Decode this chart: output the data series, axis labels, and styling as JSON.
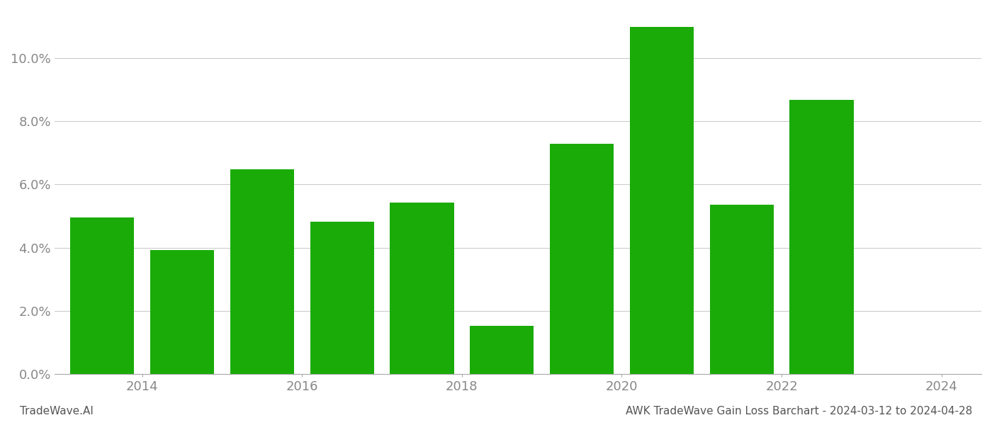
{
  "years": [
    2014,
    2015,
    2016,
    2017,
    2018,
    2019,
    2020,
    2021,
    2022,
    2023
  ],
  "values": [
    0.0495,
    0.0393,
    0.0648,
    0.0482,
    0.0542,
    0.0152,
    0.0728,
    0.1098,
    0.0535,
    0.0868
  ],
  "bar_color": "#1aab08",
  "background_color": "#ffffff",
  "grid_color": "#cccccc",
  "title": "AWK TradeWave Gain Loss Barchart - 2024-03-12 to 2024-04-28",
  "footer_left": "TradeWave.AI",
  "ylim": [
    0,
    0.115
  ],
  "yticks": [
    0.0,
    0.02,
    0.04,
    0.06,
    0.08,
    0.1
  ],
  "xtick_positions": [
    2014.5,
    2016.5,
    2018.5,
    2020.5,
    2022.5,
    2024.5
  ],
  "xtick_labels": [
    "2014",
    "2016",
    "2018",
    "2020",
    "2022",
    "2024"
  ],
  "xlabel_fontsize": 13,
  "ylabel_fontsize": 13,
  "footer_fontsize": 11,
  "bar_width": 0.8
}
